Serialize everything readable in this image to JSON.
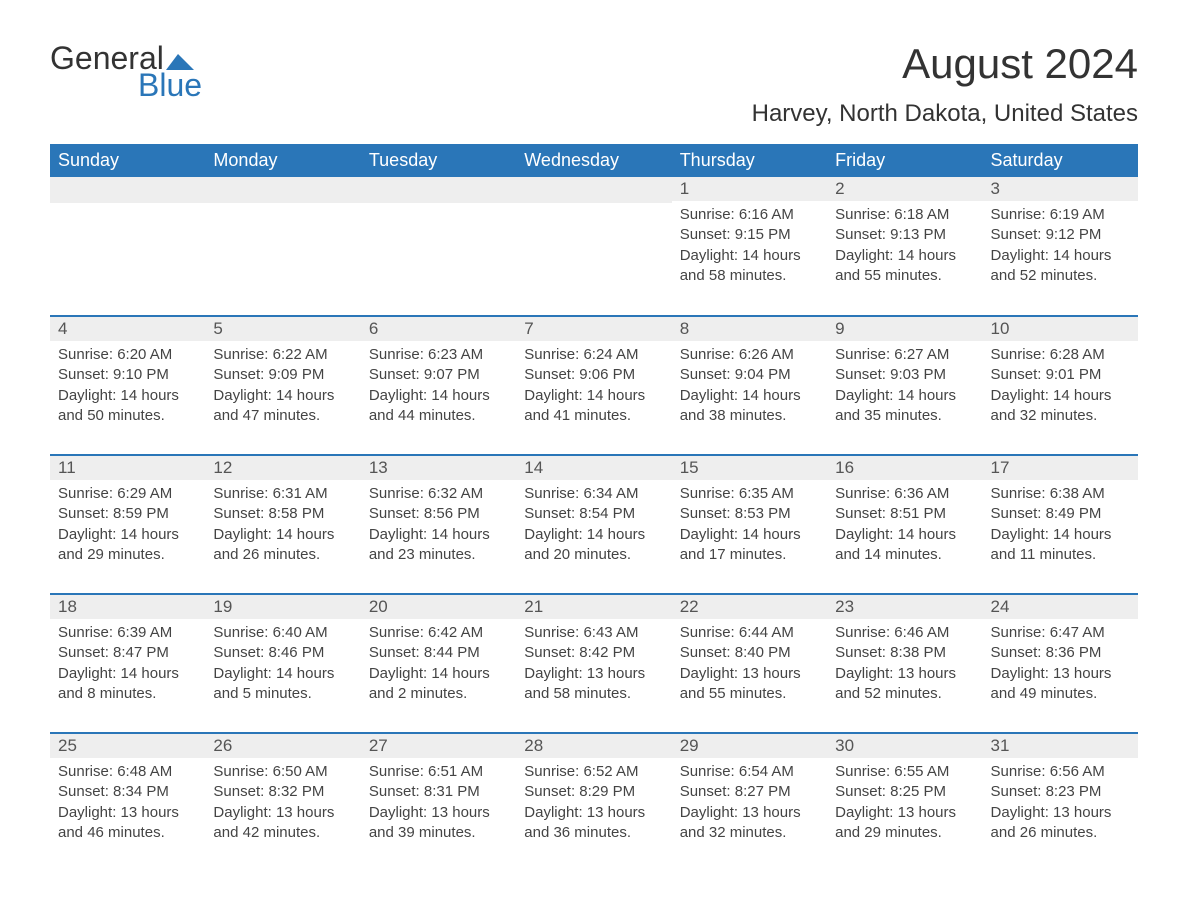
{
  "brand": {
    "word1": "General",
    "word2": "Blue"
  },
  "title": "August 2024",
  "location": "Harvey, North Dakota, United States",
  "colors": {
    "header_bg": "#2a76b8",
    "header_text": "#ffffff",
    "daynum_bg": "#eeeeee",
    "rule": "#2a76b8",
    "body_text": "#444444",
    "page_bg": "#ffffff"
  },
  "dow": [
    "Sunday",
    "Monday",
    "Tuesday",
    "Wednesday",
    "Thursday",
    "Friday",
    "Saturday"
  ],
  "weeks": [
    [
      null,
      null,
      null,
      null,
      {
        "n": "1",
        "sr": "6:16 AM",
        "ss": "9:15 PM",
        "dl": "14 hours and 58 minutes."
      },
      {
        "n": "2",
        "sr": "6:18 AM",
        "ss": "9:13 PM",
        "dl": "14 hours and 55 minutes."
      },
      {
        "n": "3",
        "sr": "6:19 AM",
        "ss": "9:12 PM",
        "dl": "14 hours and 52 minutes."
      }
    ],
    [
      {
        "n": "4",
        "sr": "6:20 AM",
        "ss": "9:10 PM",
        "dl": "14 hours and 50 minutes."
      },
      {
        "n": "5",
        "sr": "6:22 AM",
        "ss": "9:09 PM",
        "dl": "14 hours and 47 minutes."
      },
      {
        "n": "6",
        "sr": "6:23 AM",
        "ss": "9:07 PM",
        "dl": "14 hours and 44 minutes."
      },
      {
        "n": "7",
        "sr": "6:24 AM",
        "ss": "9:06 PM",
        "dl": "14 hours and 41 minutes."
      },
      {
        "n": "8",
        "sr": "6:26 AM",
        "ss": "9:04 PM",
        "dl": "14 hours and 38 minutes."
      },
      {
        "n": "9",
        "sr": "6:27 AM",
        "ss": "9:03 PM",
        "dl": "14 hours and 35 minutes."
      },
      {
        "n": "10",
        "sr": "6:28 AM",
        "ss": "9:01 PM",
        "dl": "14 hours and 32 minutes."
      }
    ],
    [
      {
        "n": "11",
        "sr": "6:29 AM",
        "ss": "8:59 PM",
        "dl": "14 hours and 29 minutes."
      },
      {
        "n": "12",
        "sr": "6:31 AM",
        "ss": "8:58 PM",
        "dl": "14 hours and 26 minutes."
      },
      {
        "n": "13",
        "sr": "6:32 AM",
        "ss": "8:56 PM",
        "dl": "14 hours and 23 minutes."
      },
      {
        "n": "14",
        "sr": "6:34 AM",
        "ss": "8:54 PM",
        "dl": "14 hours and 20 minutes."
      },
      {
        "n": "15",
        "sr": "6:35 AM",
        "ss": "8:53 PM",
        "dl": "14 hours and 17 minutes."
      },
      {
        "n": "16",
        "sr": "6:36 AM",
        "ss": "8:51 PM",
        "dl": "14 hours and 14 minutes."
      },
      {
        "n": "17",
        "sr": "6:38 AM",
        "ss": "8:49 PM",
        "dl": "14 hours and 11 minutes."
      }
    ],
    [
      {
        "n": "18",
        "sr": "6:39 AM",
        "ss": "8:47 PM",
        "dl": "14 hours and 8 minutes."
      },
      {
        "n": "19",
        "sr": "6:40 AM",
        "ss": "8:46 PM",
        "dl": "14 hours and 5 minutes."
      },
      {
        "n": "20",
        "sr": "6:42 AM",
        "ss": "8:44 PM",
        "dl": "14 hours and 2 minutes."
      },
      {
        "n": "21",
        "sr": "6:43 AM",
        "ss": "8:42 PM",
        "dl": "13 hours and 58 minutes."
      },
      {
        "n": "22",
        "sr": "6:44 AM",
        "ss": "8:40 PM",
        "dl": "13 hours and 55 minutes."
      },
      {
        "n": "23",
        "sr": "6:46 AM",
        "ss": "8:38 PM",
        "dl": "13 hours and 52 minutes."
      },
      {
        "n": "24",
        "sr": "6:47 AM",
        "ss": "8:36 PM",
        "dl": "13 hours and 49 minutes."
      }
    ],
    [
      {
        "n": "25",
        "sr": "6:48 AM",
        "ss": "8:34 PM",
        "dl": "13 hours and 46 minutes."
      },
      {
        "n": "26",
        "sr": "6:50 AM",
        "ss": "8:32 PM",
        "dl": "13 hours and 42 minutes."
      },
      {
        "n": "27",
        "sr": "6:51 AM",
        "ss": "8:31 PM",
        "dl": "13 hours and 39 minutes."
      },
      {
        "n": "28",
        "sr": "6:52 AM",
        "ss": "8:29 PM",
        "dl": "13 hours and 36 minutes."
      },
      {
        "n": "29",
        "sr": "6:54 AM",
        "ss": "8:27 PM",
        "dl": "13 hours and 32 minutes."
      },
      {
        "n": "30",
        "sr": "6:55 AM",
        "ss": "8:25 PM",
        "dl": "13 hours and 29 minutes."
      },
      {
        "n": "31",
        "sr": "6:56 AM",
        "ss": "8:23 PM",
        "dl": "13 hours and 26 minutes."
      }
    ]
  ],
  "labels": {
    "sunrise": "Sunrise: ",
    "sunset": "Sunset: ",
    "daylight": "Daylight: "
  }
}
